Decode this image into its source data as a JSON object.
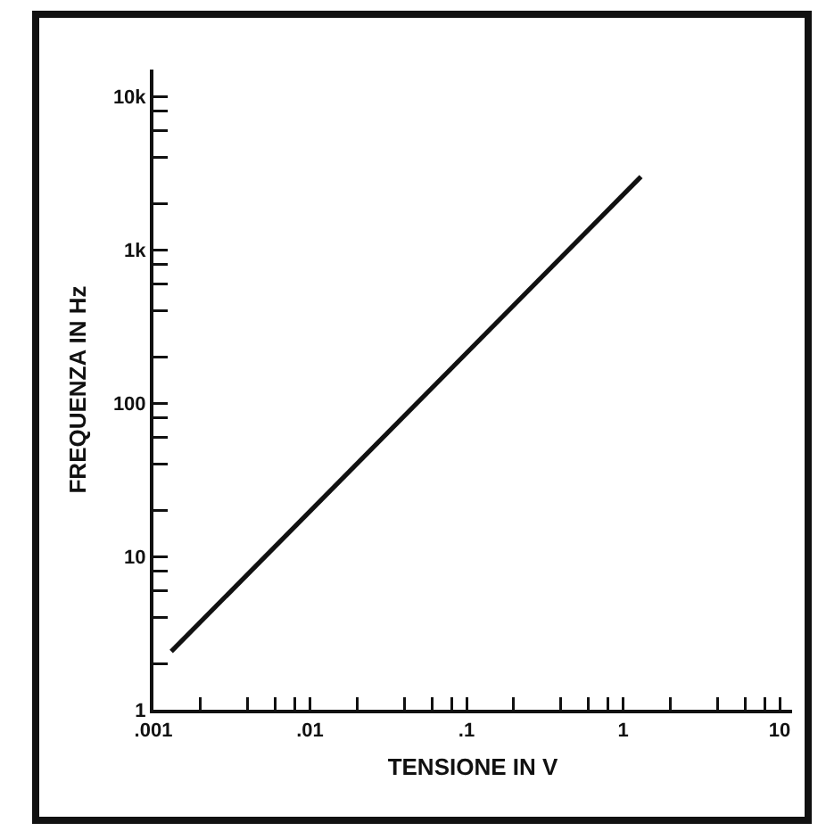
{
  "chart_data": {
    "type": "line",
    "xlabel": "TENSIONE IN V",
    "ylabel": "FREQUENZA IN Hz",
    "log": "xy",
    "grid": false,
    "marker": "none",
    "line_style": "solid",
    "x": [
      0.0013,
      1.3
    ],
    "series": [
      {
        "color": "#111111",
        "values": [
          2.4,
          3000
        ]
      }
    ],
    "xlim": [
      0.001,
      12
    ],
    "ylim": [
      1,
      15000
    ],
    "xticks": [
      {
        "value": 0.001,
        "label": ".001"
      },
      {
        "value": 0.002,
        "label": null
      },
      {
        "value": 0.004,
        "label": null
      },
      {
        "value": 0.006,
        "label": null
      },
      {
        "value": 0.008,
        "label": null
      },
      {
        "value": 0.01,
        "label": ".01"
      },
      {
        "value": 0.02,
        "label": null
      },
      {
        "value": 0.04,
        "label": null
      },
      {
        "value": 0.06,
        "label": null
      },
      {
        "value": 0.08,
        "label": null
      },
      {
        "value": 0.1,
        "label": ".1"
      },
      {
        "value": 0.2,
        "label": null
      },
      {
        "value": 0.4,
        "label": null
      },
      {
        "value": 0.6,
        "label": null
      },
      {
        "value": 0.8,
        "label": null
      },
      1,
      {
        "value": 2,
        "label": null
      },
      {
        "value": 4,
        "label": null
      },
      {
        "value": 6,
        "label": null
      },
      {
        "value": 8,
        "label": null
      },
      10
    ],
    "yticks": [
      1,
      {
        "value": 2,
        "label": null
      },
      {
        "value": 4,
        "label": null
      },
      {
        "value": 6,
        "label": null
      },
      {
        "value": 8,
        "label": null
      },
      10,
      {
        "value": 20,
        "label": null
      },
      {
        "value": 40,
        "label": null
      },
      {
        "value": 60,
        "label": null
      },
      {
        "value": 80,
        "label": null
      },
      100,
      {
        "value": 200,
        "label": null
      },
      {
        "value": 400,
        "label": null
      },
      {
        "value": 600,
        "label": null
      },
      {
        "value": 800,
        "label": null
      },
      {
        "value": 1000,
        "label": "1k"
      },
      {
        "value": 2000,
        "label": null
      },
      {
        "value": 4000,
        "label": null
      },
      {
        "value": 6000,
        "label": null
      },
      {
        "value": 8000,
        "label": null
      },
      {
        "value": 10000,
        "label": "10k"
      }
    ]
  }
}
